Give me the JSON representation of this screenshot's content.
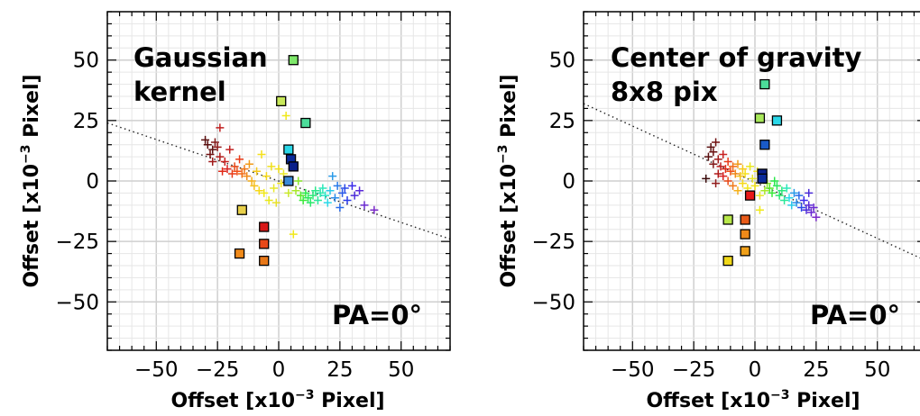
{
  "chart_data": [
    {
      "type": "scatter",
      "panel": "left",
      "title": "",
      "annotations": {
        "method_line1": "Gaussian",
        "method_line2": "kernel",
        "pa": "PA=0°"
      },
      "xlabel": {
        "pre": "Offset [x10",
        "sup": "−3",
        "post": " Pixel]"
      },
      "ylabel": {
        "pre": "Offset [x10",
        "sup": "−3",
        "post": " Pixel]"
      },
      "xlim": [
        -70,
        70
      ],
      "ylim": [
        -70,
        70
      ],
      "xticks": [
        -50,
        -25,
        0,
        25,
        50
      ],
      "yticks": [
        -50,
        -25,
        0,
        25,
        50
      ],
      "xtick_labels": [
        "−50",
        "−25",
        "0",
        "25",
        "50"
      ],
      "ytick_labels": [
        "−50",
        "−25",
        "0",
        "25",
        "50"
      ],
      "grid": true,
      "trend_line": {
        "x": [
          -70,
          70
        ],
        "y": [
          24,
          -24
        ]
      },
      "squares": [
        {
          "x": 6,
          "y": 50,
          "color": "#7ee86a"
        },
        {
          "x": 1,
          "y": 33,
          "color": "#c8e85a"
        },
        {
          "x": 11,
          "y": 24,
          "color": "#4cdd9a"
        },
        {
          "x": 4,
          "y": 13,
          "color": "#2ad7e8"
        },
        {
          "x": 5,
          "y": 9,
          "color": "#0a2a9a"
        },
        {
          "x": 6,
          "y": 6,
          "color": "#0a1f8a"
        },
        {
          "x": 4,
          "y": 0,
          "color": "#3a8ad8"
        },
        {
          "x": -15,
          "y": -12,
          "color": "#e8d04a"
        },
        {
          "x": -6,
          "y": -19,
          "color": "#d81818"
        },
        {
          "x": -6,
          "y": -26,
          "color": "#e84818"
        },
        {
          "x": -16,
          "y": -30,
          "color": "#f08a1a"
        },
        {
          "x": -6,
          "y": -33,
          "color": "#e87818"
        }
      ],
      "crosses": [
        {
          "x": -30,
          "y": 17,
          "color": "#5a1010"
        },
        {
          "x": -29,
          "y": 15,
          "color": "#5a1010"
        },
        {
          "x": -28,
          "y": 11,
          "color": "#701010"
        },
        {
          "x": -27,
          "y": 13,
          "color": "#5a1010"
        },
        {
          "x": -26,
          "y": 16,
          "color": "#801818"
        },
        {
          "x": -25,
          "y": 14,
          "color": "#901a1a"
        },
        {
          "x": -27,
          "y": 8,
          "color": "#a01a1a"
        },
        {
          "x": -24,
          "y": 22,
          "color": "#c02020"
        },
        {
          "x": -24,
          "y": 10,
          "color": "#b01a1a"
        },
        {
          "x": -22,
          "y": 8,
          "color": "#c82020"
        },
        {
          "x": -21,
          "y": 5,
          "color": "#d82020"
        },
        {
          "x": -23,
          "y": 4,
          "color": "#e02a18"
        },
        {
          "x": -20,
          "y": 13,
          "color": "#c02020"
        },
        {
          "x": -19,
          "y": 3,
          "color": "#e83a18"
        },
        {
          "x": -18,
          "y": 6,
          "color": "#e84818"
        },
        {
          "x": -17,
          "y": 4,
          "color": "#f05018"
        },
        {
          "x": -16,
          "y": 9,
          "color": "#e83a18"
        },
        {
          "x": -15,
          "y": 3,
          "color": "#f06a18"
        },
        {
          "x": -14,
          "y": 5,
          "color": "#f07818"
        },
        {
          "x": -13,
          "y": 2,
          "color": "#f08a1a"
        },
        {
          "x": -12,
          "y": 7,
          "color": "#f09a1a"
        },
        {
          "x": -11,
          "y": 0,
          "color": "#f5b01a"
        },
        {
          "x": -10,
          "y": -2,
          "color": "#f5c01a"
        },
        {
          "x": -9,
          "y": 4,
          "color": "#f5c81a"
        },
        {
          "x": -8,
          "y": -4,
          "color": "#f5d81a"
        },
        {
          "x": -7,
          "y": 11,
          "color": "#f5e01a"
        },
        {
          "x": -6,
          "y": -5,
          "color": "#f0e81a"
        },
        {
          "x": -5,
          "y": 2,
          "color": "#f5d81a"
        },
        {
          "x": -4,
          "y": -8,
          "color": "#e8e81a"
        },
        {
          "x": -3,
          "y": 6,
          "color": "#f0e01a"
        },
        {
          "x": -2,
          "y": -3,
          "color": "#e8e82a"
        },
        {
          "x": -1,
          "y": -9,
          "color": "#e8e02a"
        },
        {
          "x": 0,
          "y": 5,
          "color": "#f0e01a"
        },
        {
          "x": 1,
          "y": -1,
          "color": "#f5e81a"
        },
        {
          "x": 2,
          "y": 3,
          "color": "#e8e82a"
        },
        {
          "x": 3,
          "y": 27,
          "color": "#f0e81a"
        },
        {
          "x": 4,
          "y": -5,
          "color": "#c8e82a"
        },
        {
          "x": 6,
          "y": -22,
          "color": "#f0e81a"
        },
        {
          "x": 7,
          "y": -4,
          "color": "#a8e82a"
        },
        {
          "x": 8,
          "y": 0,
          "color": "#8ae82a"
        },
        {
          "x": 9,
          "y": -6,
          "color": "#5ae82a"
        },
        {
          "x": 10,
          "y": -8,
          "color": "#3ae83a"
        },
        {
          "x": 11,
          "y": -5,
          "color": "#2ae84a"
        },
        {
          "x": 12,
          "y": -7,
          "color": "#2ae85a"
        },
        {
          "x": 13,
          "y": -9,
          "color": "#2ae86a"
        },
        {
          "x": 14,
          "y": -6,
          "color": "#2ae87a"
        },
        {
          "x": 15,
          "y": -4,
          "color": "#2ae88a"
        },
        {
          "x": 16,
          "y": -8,
          "color": "#2ae89a"
        },
        {
          "x": 17,
          "y": -5,
          "color": "#2ae8aa"
        },
        {
          "x": 18,
          "y": -3,
          "color": "#2ae8ba"
        },
        {
          "x": 19,
          "y": -6,
          "color": "#2ae8ca"
        },
        {
          "x": 20,
          "y": -9,
          "color": "#2ad8e8"
        },
        {
          "x": 21,
          "y": -4,
          "color": "#2ac8e8"
        },
        {
          "x": 22,
          "y": 2,
          "color": "#2a9ae8"
        },
        {
          "x": 23,
          "y": -7,
          "color": "#2a8ae8"
        },
        {
          "x": 24,
          "y": -2,
          "color": "#2a7ae8"
        },
        {
          "x": 25,
          "y": -11,
          "color": "#2a6ae8"
        },
        {
          "x": 26,
          "y": -5,
          "color": "#2a5ae8"
        },
        {
          "x": 27,
          "y": -3,
          "color": "#2a4ae8"
        },
        {
          "x": 28,
          "y": -8,
          "color": "#2a3ae8"
        },
        {
          "x": 30,
          "y": -2,
          "color": "#3a2ae8"
        },
        {
          "x": 31,
          "y": -6,
          "color": "#4a2ad8"
        },
        {
          "x": 33,
          "y": -4,
          "color": "#5a2ad8"
        },
        {
          "x": 35,
          "y": -10,
          "color": "#6a2ad0"
        },
        {
          "x": 39,
          "y": -12,
          "color": "#7a2ac8"
        }
      ]
    },
    {
      "type": "scatter",
      "panel": "right",
      "title": "",
      "annotations": {
        "method_line1": "Center of gravity",
        "method_line2": "8x8 pix",
        "pa": "PA=0°"
      },
      "xlabel": {
        "pre": "Offset [x10",
        "sup": "−3",
        "post": " Pixel]"
      },
      "ylabel": {
        "pre": "Offset [x10",
        "sup": "−3",
        "post": " Pixel]"
      },
      "xlim": [
        -70,
        70
      ],
      "ylim": [
        -70,
        70
      ],
      "xticks": [
        -50,
        -25,
        0,
        25,
        50
      ],
      "yticks": [
        -50,
        -25,
        0,
        25,
        50
      ],
      "xtick_labels": [
        "−50",
        "−25",
        "0",
        "25",
        "50"
      ],
      "ytick_labels": [
        "−50",
        "−25",
        "0",
        "25",
        "50"
      ],
      "grid": true,
      "trend_line": {
        "x": [
          -70,
          70
        ],
        "y": [
          32,
          -33
        ]
      },
      "squares": [
        {
          "x": 4,
          "y": 40,
          "color": "#4cdd9a"
        },
        {
          "x": 2,
          "y": 26,
          "color": "#a8e85a"
        },
        {
          "x": 9,
          "y": 25,
          "color": "#2ad7e8"
        },
        {
          "x": 4,
          "y": 15,
          "color": "#1a5ac8"
        },
        {
          "x": 3,
          "y": 3,
          "color": "#0a1f8a"
        },
        {
          "x": 3,
          "y": 1,
          "color": "#0a2a9a"
        },
        {
          "x": -2,
          "y": -6,
          "color": "#e81818"
        },
        {
          "x": -11,
          "y": -16,
          "color": "#b8e84a"
        },
        {
          "x": -4,
          "y": -16,
          "color": "#e85a18"
        },
        {
          "x": -4,
          "y": -22,
          "color": "#f08a1a"
        },
        {
          "x": -4,
          "y": -29,
          "color": "#f0a01a"
        },
        {
          "x": -11,
          "y": -33,
          "color": "#f0d81a"
        }
      ],
      "crosses": [
        {
          "x": -20,
          "y": 1,
          "color": "#3a0a0a"
        },
        {
          "x": -19,
          "y": 10,
          "color": "#5a1010"
        },
        {
          "x": -18,
          "y": 14,
          "color": "#5a1010"
        },
        {
          "x": -17,
          "y": 12,
          "color": "#6a1010"
        },
        {
          "x": -17,
          "y": 7,
          "color": "#801818"
        },
        {
          "x": -16,
          "y": 16,
          "color": "#701010"
        },
        {
          "x": -16,
          "y": -1,
          "color": "#901a1a"
        },
        {
          "x": -15,
          "y": 9,
          "color": "#a01a1a"
        },
        {
          "x": -15,
          "y": 3,
          "color": "#b01a1a"
        },
        {
          "x": -14,
          "y": 6,
          "color": "#c02020"
        },
        {
          "x": -13,
          "y": 11,
          "color": "#c82020"
        },
        {
          "x": -13,
          "y": 2,
          "color": "#d82020"
        },
        {
          "x": -12,
          "y": 5,
          "color": "#e02a18"
        },
        {
          "x": -11,
          "y": 8,
          "color": "#e83a18"
        },
        {
          "x": -11,
          "y": 0,
          "color": "#e84818"
        },
        {
          "x": -10,
          "y": 4,
          "color": "#f05018"
        },
        {
          "x": -9,
          "y": 6,
          "color": "#f06a18"
        },
        {
          "x": -9,
          "y": -2,
          "color": "#f07818"
        },
        {
          "x": -8,
          "y": 3,
          "color": "#f08a1a"
        },
        {
          "x": -7,
          "y": 7,
          "color": "#f09a1a"
        },
        {
          "x": -7,
          "y": -4,
          "color": "#f5b01a"
        },
        {
          "x": -6,
          "y": 2,
          "color": "#f5c01a"
        },
        {
          "x": -5,
          "y": 5,
          "color": "#f5c81a"
        },
        {
          "x": -5,
          "y": -1,
          "color": "#f5d81a"
        },
        {
          "x": -4,
          "y": 3,
          "color": "#f5e01a"
        },
        {
          "x": -3,
          "y": -3,
          "color": "#f0e81a"
        },
        {
          "x": -2,
          "y": 6,
          "color": "#e8e81a"
        },
        {
          "x": -1,
          "y": 1,
          "color": "#e8e82a"
        },
        {
          "x": 0,
          "y": -2,
          "color": "#f0e01a"
        },
        {
          "x": 1,
          "y": 4,
          "color": "#f5e81a"
        },
        {
          "x": 2,
          "y": -6,
          "color": "#e8e82a"
        },
        {
          "x": 2,
          "y": -12,
          "color": "#f0e81a"
        },
        {
          "x": 3,
          "y": 1,
          "color": "#c8e82a"
        },
        {
          "x": 4,
          "y": -4,
          "color": "#a8e82a"
        },
        {
          "x": 5,
          "y": -1,
          "color": "#8ae82a"
        },
        {
          "x": 6,
          "y": -3,
          "color": "#5ae82a"
        },
        {
          "x": 7,
          "y": -5,
          "color": "#3ae83a"
        },
        {
          "x": 8,
          "y": 0,
          "color": "#2ae84a"
        },
        {
          "x": 9,
          "y": -2,
          "color": "#2ae85a"
        },
        {
          "x": 10,
          "y": -6,
          "color": "#2ae86a"
        },
        {
          "x": 11,
          "y": -4,
          "color": "#2ae87a"
        },
        {
          "x": 12,
          "y": -8,
          "color": "#2ae89a"
        },
        {
          "x": 13,
          "y": -3,
          "color": "#2ae8ba"
        },
        {
          "x": 14,
          "y": -7,
          "color": "#2ad8e8"
        },
        {
          "x": 15,
          "y": -10,
          "color": "#2ac8e8"
        },
        {
          "x": 16,
          "y": -5,
          "color": "#2a9ae8"
        },
        {
          "x": 17,
          "y": -9,
          "color": "#2a8ae8"
        },
        {
          "x": 18,
          "y": -6,
          "color": "#2a6ae8"
        },
        {
          "x": 19,
          "y": -11,
          "color": "#2a4ae8"
        },
        {
          "x": 20,
          "y": -8,
          "color": "#3a2ae8"
        },
        {
          "x": 21,
          "y": -12,
          "color": "#4a2ad8"
        },
        {
          "x": 22,
          "y": -10,
          "color": "#5a2ad8"
        },
        {
          "x": 23,
          "y": -13,
          "color": "#6a2ad0"
        },
        {
          "x": 25,
          "y": -15,
          "color": "#7a2ac8"
        },
        {
          "x": 24,
          "y": -11,
          "color": "#6a2ad0"
        },
        {
          "x": 22,
          "y": -5,
          "color": "#4a2ad8"
        }
      ]
    }
  ]
}
